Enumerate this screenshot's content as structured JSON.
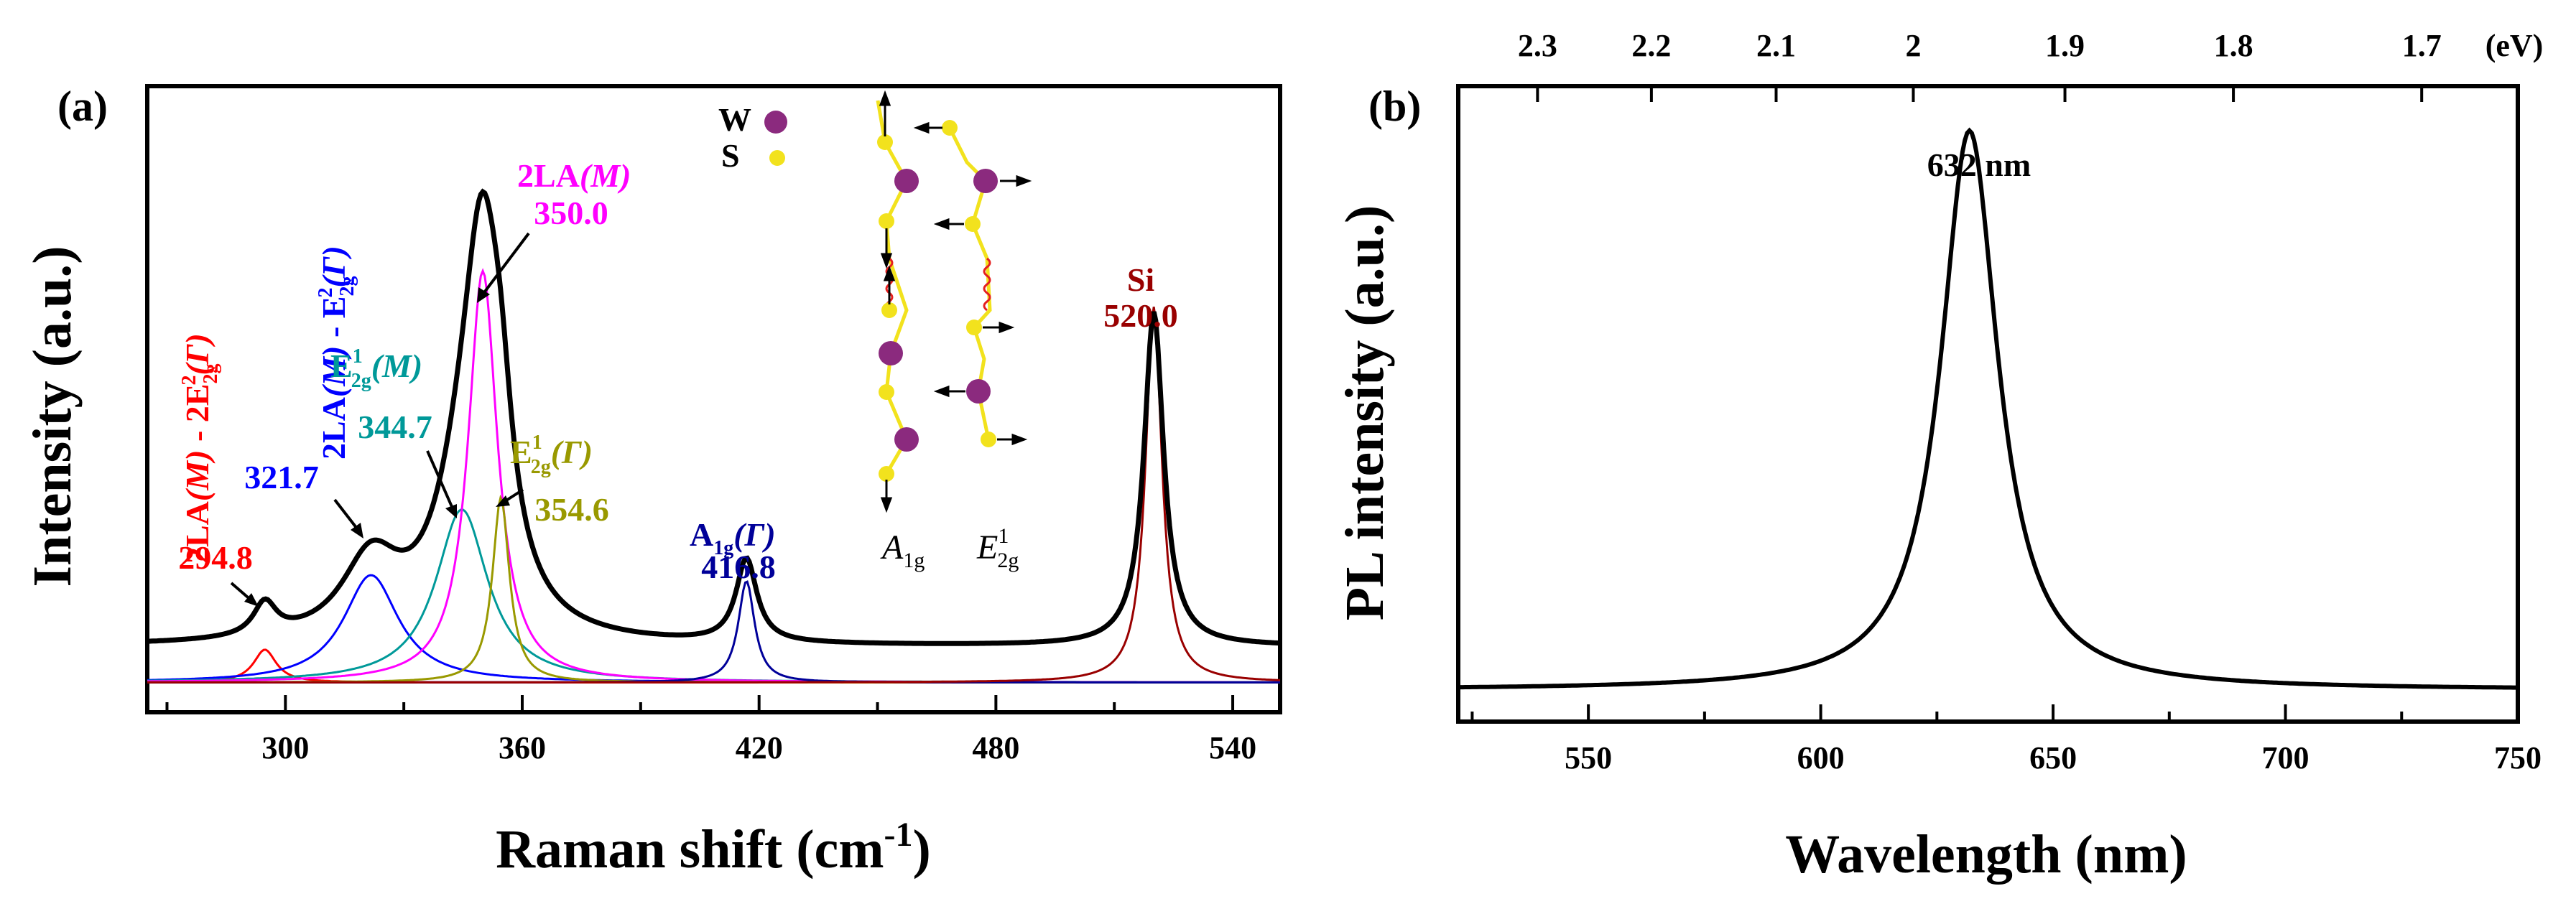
{
  "chart_data": [
    {
      "panel": "(a)",
      "type": "line",
      "xlabel": "Raman shift (cm",
      "xlabel_sup": "-1",
      "xlabel_close": ")",
      "ylabel": "Intensity (a.u.)",
      "xlim": [
        265,
        552
      ],
      "ylim": [
        -0.05,
        1.0
      ],
      "x_ticks": [
        300,
        360,
        420,
        480,
        540
      ],
      "x_tick_labels": [
        "300",
        "360",
        "420",
        "480",
        "540"
      ],
      "baseline": 0.06,
      "envelope_peaks": [
        {
          "x0": 294.8,
          "amp": 0.055,
          "width": 3.5
        },
        {
          "x0": 321.7,
          "amp": 0.13,
          "width": 9.0
        },
        {
          "x0": 344.7,
          "amp": 0.16,
          "width": 8.5
        },
        {
          "x0": 350.0,
          "amp": 0.58,
          "width": 6.0
        },
        {
          "x0": 354.6,
          "amp": 0.15,
          "width": 3.5
        },
        {
          "x0": 416.8,
          "amp": 0.14,
          "width": 3.2
        },
        {
          "x0": 520.0,
          "amp": 0.56,
          "width": 3.0
        }
      ],
      "series": [
        {
          "name": "2LA(M) - 2E2g(Γ)",
          "x0": 294.8,
          "amp": 0.055,
          "width": 3.5,
          "color": "#ff0000"
        },
        {
          "name": "2LA(M) - E2g(Γ)",
          "x0": 321.7,
          "amp": 0.18,
          "width": 8.5,
          "color": "#0000ff"
        },
        {
          "name": "E1 2g(M)",
          "x0": 344.7,
          "amp": 0.29,
          "width": 8.0,
          "color": "#009999"
        },
        {
          "name": "2LA(M)",
          "x0": 350.0,
          "amp": 0.69,
          "width": 4.5,
          "color": "#ff00ff"
        },
        {
          "name": "E1 2g(Γ)",
          "x0": 354.6,
          "amp": 0.31,
          "width": 2.6,
          "color": "#999900"
        },
        {
          "name": "A1g(Γ)",
          "x0": 416.8,
          "amp": 0.17,
          "width": 2.5,
          "color": "#000099"
        },
        {
          "name": "Si",
          "x0": 520.0,
          "amp": 0.63,
          "width": 2.5,
          "color": "#990000"
        }
      ],
      "annotations": {
        "a1": {
          "name": "2LA",
          "m": "(M)",
          "minus": " - 2E",
          "sub": "2g",
          "sup": "2",
          "gamma": "(Γ)",
          "value": "294.8",
          "color": "#ff0000"
        },
        "a2": {
          "name": "2LA",
          "m": "(M)",
          "minus": " - E",
          "sub": "2g",
          "sup": "2",
          "gamma": "(Γ)",
          "value": "321.7",
          "color": "#0000ff"
        },
        "a3": {
          "name": "E",
          "sup": "1",
          "sub": "2g",
          "m": "(M)",
          "value": "344.7",
          "color": "#009999"
        },
        "a4": {
          "name": "2LA",
          "m": "(M)",
          "value": "350.0",
          "color": "#ff00ff"
        },
        "a5": {
          "name": "E",
          "sup": "1",
          "sub": "2g",
          "gamma": "(Γ)",
          "value": "354.6",
          "color": "#999900"
        },
        "a6": {
          "name": "A",
          "sub": "1g",
          "gamma": "(Γ)",
          "value": "416.8",
          "color": "#000099"
        },
        "a7": {
          "name": "Si",
          "value": "520.0",
          "color": "#990000"
        }
      },
      "inset": {
        "legend_w": "W",
        "legend_s": "S",
        "mode1": "A",
        "mode1_sub": "1g",
        "mode2": "E",
        "mode2_sup": "1",
        "mode2_sub": "2g",
        "w_color": "#8b2a7e",
        "s_color": "#f2e21d",
        "bond_color": "#f2e21d",
        "spring_color": "#e41f1f"
      }
    },
    {
      "panel": "(b)",
      "type": "line",
      "xlabel": "Wavelength (nm)",
      "ylabel": "PL intensity (a.u.)",
      "xlim": [
        522,
        750
      ],
      "ylim": [
        0,
        1.0
      ],
      "x_ticks": [
        550,
        600,
        650,
        700,
        750
      ],
      "x_tick_labels": [
        "550",
        "600",
        "650",
        "700",
        "750"
      ],
      "top_axis_label": "(eV)",
      "top_ticks_eV": [
        2.3,
        2.2,
        2.1,
        2,
        1.9,
        1.8,
        1.7
      ],
      "top_tick_labels": [
        "2.3",
        "2.2",
        "2.1",
        "2",
        "1.9",
        "1.8",
        "1.7"
      ],
      "peak": {
        "x0": 632,
        "amp": 0.88,
        "width": 7.5,
        "baseline": 0.05
      },
      "annotation": "632 nm"
    }
  ]
}
